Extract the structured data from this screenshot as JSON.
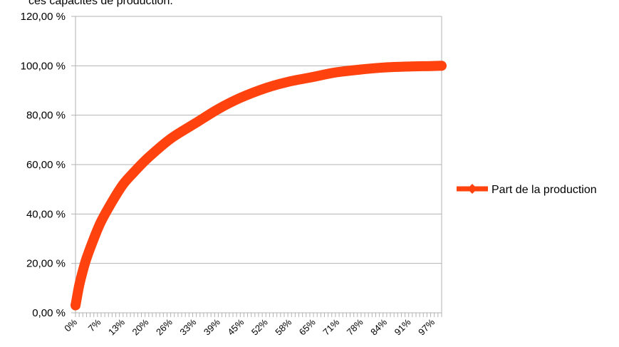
{
  "caption": "ces capacités de production.",
  "chart_data": {
    "type": "line",
    "title": "",
    "xlabel": "",
    "ylabel": "",
    "ylim": [
      0,
      120
    ],
    "y_ticks": [
      "0,00 %",
      "20,00 %",
      "40,00 %",
      "60,00 %",
      "80,00 %",
      "100,00 %",
      "120,00 %"
    ],
    "y_tick_values": [
      0,
      20,
      40,
      60,
      80,
      100,
      120
    ],
    "x_tick_labels": [
      "0%",
      "7%",
      "13%",
      "20%",
      "26%",
      "33%",
      "39%",
      "45%",
      "52%",
      "58%",
      "65%",
      "71%",
      "78%",
      "84%",
      "91%",
      "97%"
    ],
    "grid": true,
    "legend_position": "right",
    "series": [
      {
        "name": "Part de la production",
        "color": "#ff420e",
        "x": [
          0,
          1,
          2,
          3,
          5,
          7,
          10,
          13,
          16,
          20,
          26,
          33,
          39,
          45,
          52,
          58,
          65,
          71,
          78,
          84,
          91,
          97,
          100
        ],
        "values": [
          3,
          11,
          17,
          22,
          30,
          37,
          45,
          52,
          57,
          63,
          70.5,
          77,
          82.5,
          87,
          91,
          93.5,
          95.5,
          97.3,
          98.5,
          99.3,
          99.7,
          99.9,
          100
        ]
      }
    ]
  }
}
